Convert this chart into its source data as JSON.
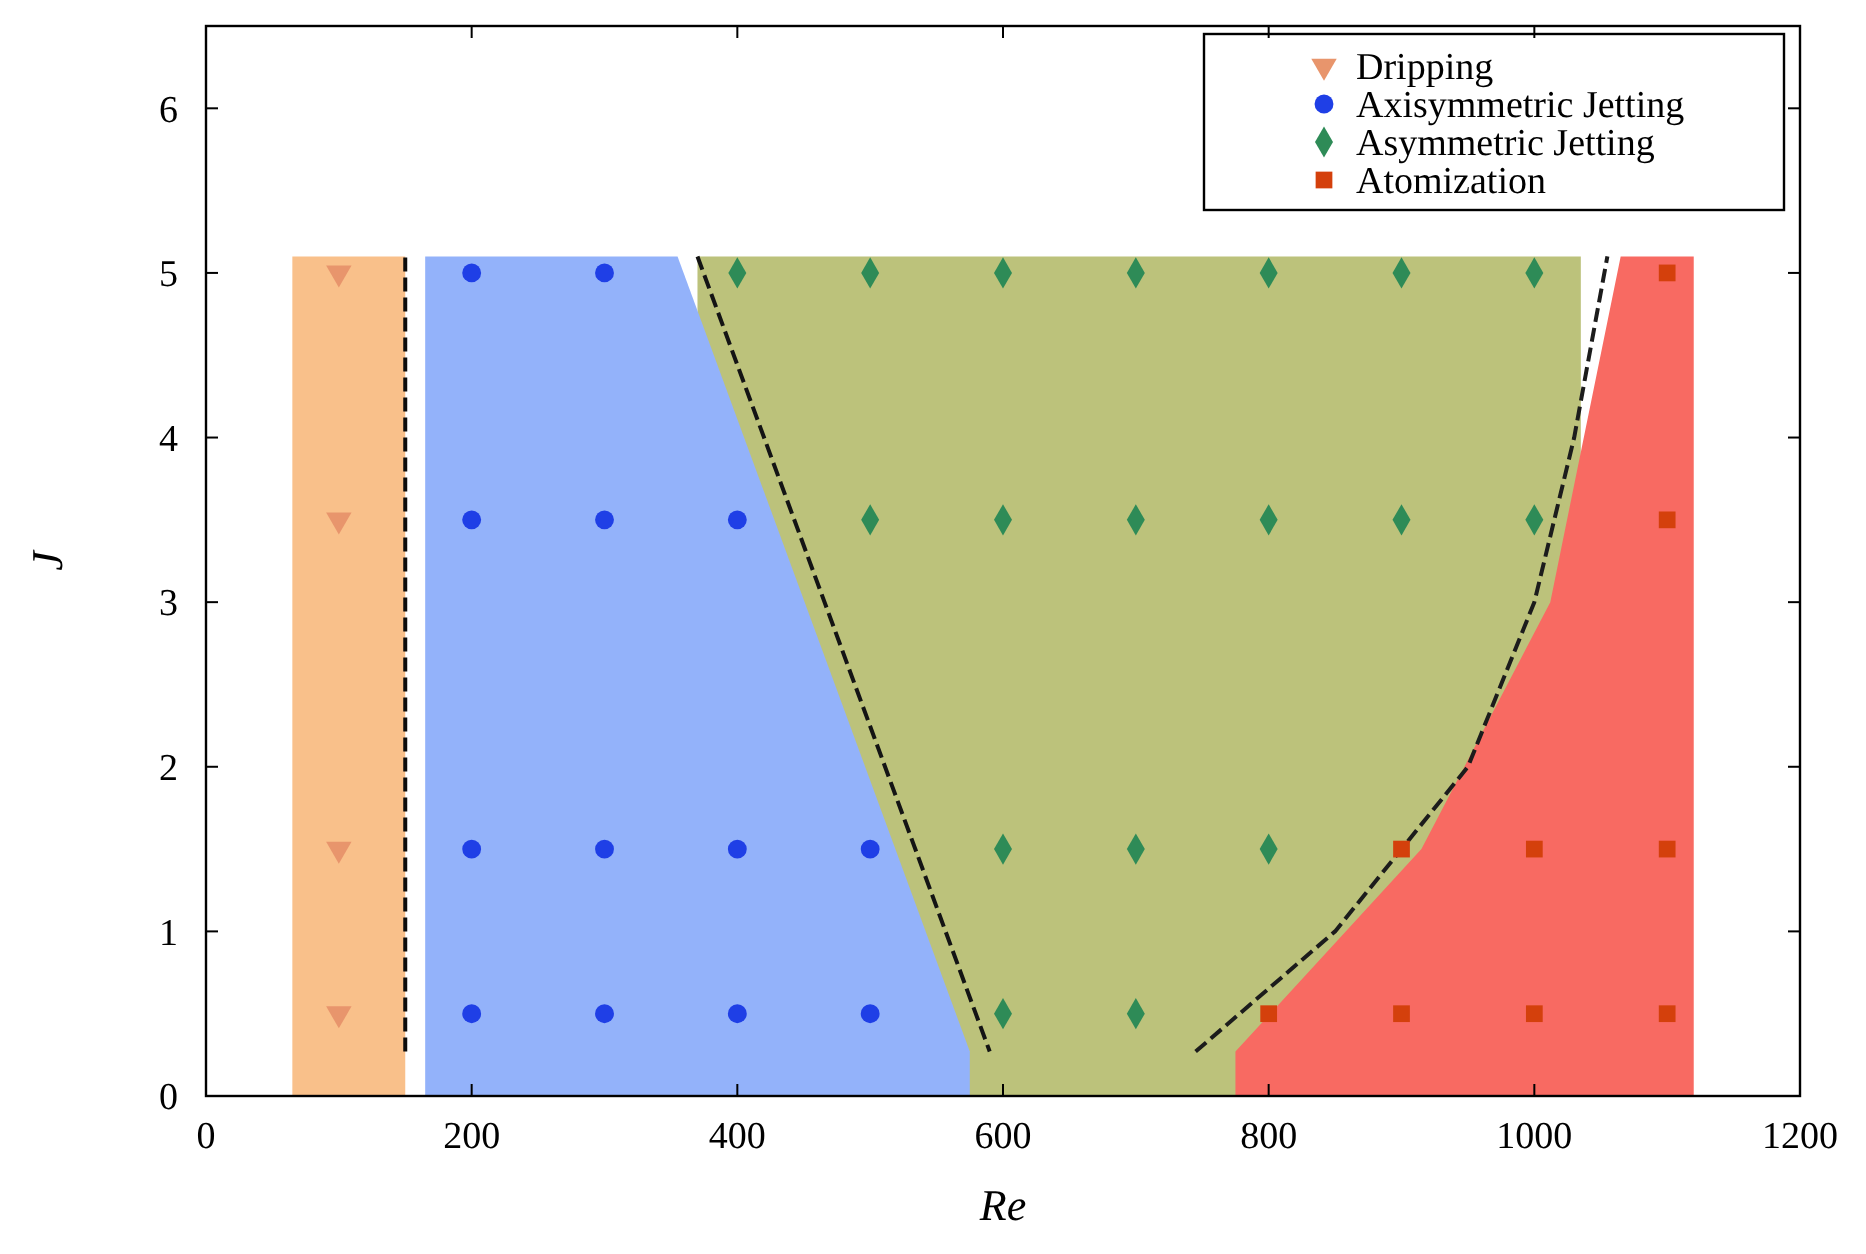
{
  "chart_data": {
    "type": "scatter",
    "xlabel": "Re",
    "ylabel": "J",
    "xlim": [
      0,
      1200
    ],
    "xticks": [
      0,
      200,
      400,
      600,
      800,
      1000,
      1200
    ],
    "ylim": [
      0,
      6.5
    ],
    "yticks": [
      0,
      1,
      2,
      3,
      4,
      5,
      6
    ],
    "grid": false,
    "legend": "top right",
    "series": [
      {
        "type": "area",
        "color": "#bcc27b",
        "x": [
          370,
          1035
        ],
        "values": [
          5.1,
          5.1
        ]
      },
      {
        "type": "area",
        "color": "#f86a62",
        "x": [
          775,
          915,
          1012,
          1065,
          1120
        ],
        "values": [
          0.27,
          1.5,
          3,
          5.1,
          5.1
        ]
      },
      {
        "type": "area",
        "color": "#93b2fa",
        "x": [
          165,
          355,
          575
        ],
        "values": [
          5.1,
          5.1,
          0.27
        ]
      },
      {
        "type": "area",
        "color": "#f9c08a",
        "x": [
          65,
          150
        ],
        "values": [
          5.1,
          5.1
        ]
      },
      {
        "type": "line",
        "color": "#0c0c0c",
        "line_style": "dashed",
        "marker": "none",
        "x": [
          150,
          150
        ],
        "values": [
          0.27,
          5.1
        ]
      },
      {
        "type": "line",
        "color": "#141414",
        "line_style": "dashed",
        "marker": "none",
        "x": [
          370,
          590
        ],
        "values": [
          5.1,
          0.27
        ]
      },
      {
        "type": "line",
        "color": "#1c1c1c",
        "line_style": "dashed",
        "marker": "none",
        "x": [
          745,
          850,
          950,
          1000,
          1030,
          1055
        ],
        "values": [
          0.27,
          1,
          2,
          3,
          4,
          5.1
        ]
      },
      {
        "name": "Dripping",
        "marker": "triangle",
        "color": "#e8956c",
        "x": [
          100,
          100,
          100,
          100
        ],
        "values": [
          5,
          3.5,
          1.5,
          0.5
        ]
      },
      {
        "name": "Axisymmetric Jetting",
        "marker": "circle",
        "color": "#1f3fe6",
        "x": [
          200,
          200,
          200,
          200,
          300,
          300,
          300,
          300,
          400,
          400,
          400,
          500,
          500
        ],
        "values": [
          5,
          3.5,
          1.5,
          0.5,
          5,
          3.5,
          1.5,
          0.5,
          3.5,
          1.5,
          0.5,
          1.5,
          0.5
        ]
      },
      {
        "name": "Asymmetric Jetting",
        "marker": "diamond",
        "color": "#2e8b57",
        "x": [
          400,
          500,
          500,
          600,
          600,
          600,
          600,
          700,
          700,
          700,
          700,
          800,
          800,
          800,
          900,
          900,
          1000,
          1000
        ],
        "values": [
          5,
          5,
          3.5,
          5,
          3.5,
          1.5,
          0.5,
          5,
          3.5,
          1.5,
          0.5,
          5,
          3.5,
          1.5,
          5,
          3.5,
          5,
          3.5
        ]
      },
      {
        "name": "Atomization",
        "marker": "square",
        "color": "#d4400c",
        "x": [
          800,
          900,
          900,
          1000,
          1000,
          1100,
          1100,
          1100,
          1100
        ],
        "values": [
          0.5,
          1.5,
          0.5,
          1.5,
          0.5,
          5,
          3.5,
          1.5,
          0.5
        ]
      }
    ]
  }
}
